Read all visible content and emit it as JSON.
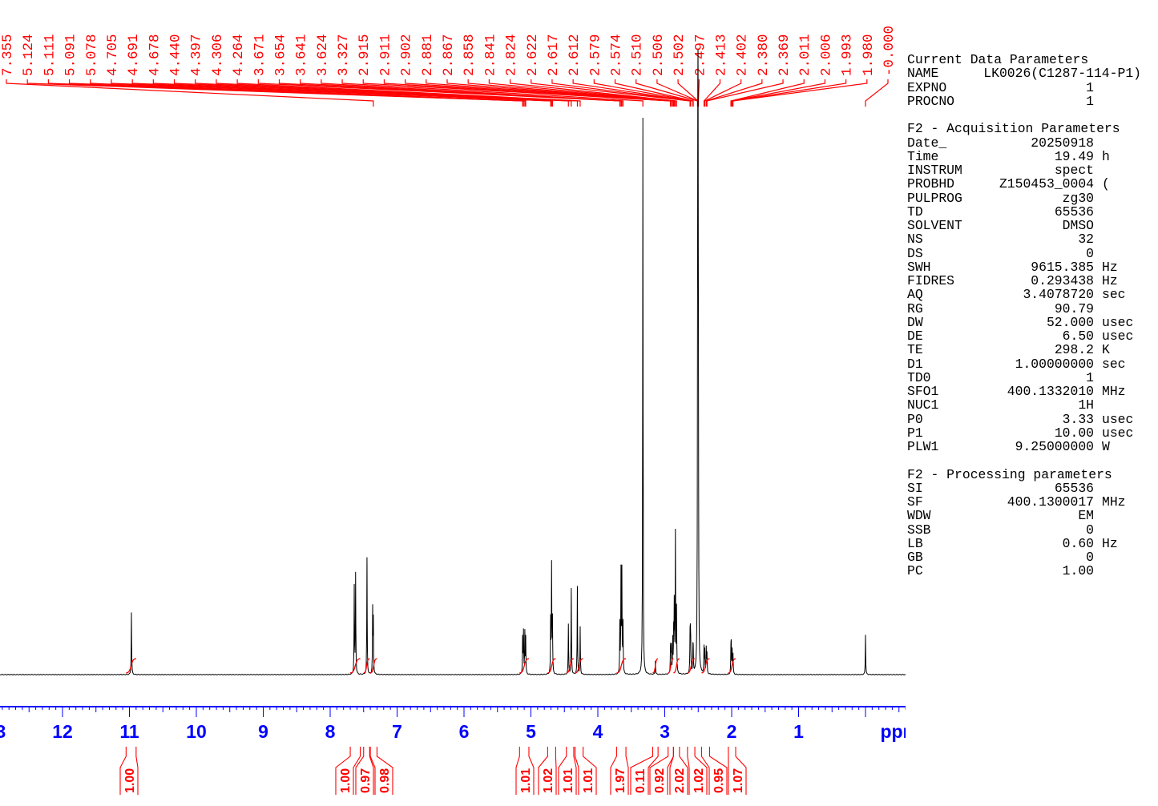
{
  "chart_data": {
    "type": "line",
    "xlabel": "ppm",
    "xlim": [
      12.93,
      -0.8
    ],
    "x_ticks": [
      "12",
      "11",
      "10",
      "9",
      "8",
      "7",
      "6",
      "5",
      "4",
      "3",
      "2",
      "1"
    ],
    "grid": false,
    "colors": {
      "trace": "#000000",
      "annotation": "#ff0000",
      "axis": "#0000ff"
    },
    "peak_labels": [
      "7.355",
      "5.124",
      "5.111",
      "5.091",
      "5.078",
      "4.705",
      "4.691",
      "4.678",
      "4.440",
      "4.397",
      "4.306",
      "4.264",
      "3.671",
      "3.654",
      "3.641",
      "3.624",
      "3.327",
      "2.915",
      "2.911",
      "2.902",
      "2.881",
      "2.867",
      "2.858",
      "2.841",
      "2.824",
      "2.622",
      "2.617",
      "2.612",
      "2.579",
      "2.574",
      "2.510",
      "2.506",
      "2.502",
      "2.497",
      "2.413",
      "2.402",
      "2.380",
      "2.369",
      "2.011",
      "2.006",
      "1.993",
      "1.980",
      "-0.000"
    ],
    "signals": [
      {
        "ppm": 10.97,
        "intensity": 11.2
      },
      {
        "ppm": 7.64,
        "intensity": 15.7
      },
      {
        "ppm": 7.62,
        "intensity": 18.0
      },
      {
        "ppm": 7.45,
        "intensity": 21.0
      },
      {
        "ppm": 7.365,
        "intensity": 11.5
      },
      {
        "ppm": 7.355,
        "intensity": 9.5
      },
      {
        "ppm": 5.124,
        "intensity": 6.5
      },
      {
        "ppm": 5.111,
        "intensity": 7.5
      },
      {
        "ppm": 5.091,
        "intensity": 7.5
      },
      {
        "ppm": 5.078,
        "intensity": 6.5
      },
      {
        "ppm": 4.705,
        "intensity": 9.5
      },
      {
        "ppm": 4.691,
        "intensity": 19.4
      },
      {
        "ppm": 4.678,
        "intensity": 9.5
      },
      {
        "ppm": 4.44,
        "intensity": 9.0
      },
      {
        "ppm": 4.397,
        "intensity": 15.4
      },
      {
        "ppm": 4.306,
        "intensity": 15.8
      },
      {
        "ppm": 4.264,
        "intensity": 8.5
      },
      {
        "ppm": 3.671,
        "intensity": 9.0
      },
      {
        "ppm": 3.654,
        "intensity": 18.0
      },
      {
        "ppm": 3.641,
        "intensity": 18.0
      },
      {
        "ppm": 3.624,
        "intensity": 9.0
      },
      {
        "ppm": 3.327,
        "intensity": 100
      },
      {
        "ppm": 3.14,
        "intensity": 2.5
      },
      {
        "ppm": 2.915,
        "intensity": 3.0
      },
      {
        "ppm": 2.911,
        "intensity": 3.5
      },
      {
        "ppm": 2.902,
        "intensity": 4.5
      },
      {
        "ppm": 2.881,
        "intensity": 6.0
      },
      {
        "ppm": 2.867,
        "intensity": 7.0
      },
      {
        "ppm": 2.858,
        "intensity": 12.0
      },
      {
        "ppm": 2.841,
        "intensity": 25.0
      },
      {
        "ppm": 2.824,
        "intensity": 11.5
      },
      {
        "ppm": 2.622,
        "intensity": 6.0
      },
      {
        "ppm": 2.617,
        "intensity": 5.5
      },
      {
        "ppm": 2.612,
        "intensity": 4.5
      },
      {
        "ppm": 2.579,
        "intensity": 4.0
      },
      {
        "ppm": 2.574,
        "intensity": 3.5
      },
      {
        "ppm": 2.51,
        "intensity": 30.0
      },
      {
        "ppm": 2.506,
        "intensity": 58.0
      },
      {
        "ppm": 2.502,
        "intensity": 69.0
      },
      {
        "ppm": 2.497,
        "intensity": 35.0
      },
      {
        "ppm": 2.413,
        "intensity": 4.6
      },
      {
        "ppm": 2.402,
        "intensity": 4.0
      },
      {
        "ppm": 2.38,
        "intensity": 4.6
      },
      {
        "ppm": 2.369,
        "intensity": 3.5
      },
      {
        "ppm": 2.011,
        "intensity": 4.0
      },
      {
        "ppm": 2.006,
        "intensity": 4.6
      },
      {
        "ppm": 1.993,
        "intensity": 4.2
      },
      {
        "ppm": 1.98,
        "intensity": 3.5
      },
      {
        "ppm": 0.0,
        "intensity": 7.2
      }
    ],
    "integrals": [
      {
        "from": 11.05,
        "to": 10.9,
        "value": "1.00"
      },
      {
        "from": 7.7,
        "to": 7.55,
        "value": "1.00"
      },
      {
        "from": 7.5,
        "to": 7.41,
        "value": "0.97"
      },
      {
        "from": 7.4,
        "to": 7.3,
        "value": "0.98"
      },
      {
        "from": 5.17,
        "to": 5.03,
        "value": "1.01"
      },
      {
        "from": 4.75,
        "to": 4.63,
        "value": "1.02"
      },
      {
        "from": 4.47,
        "to": 4.36,
        "value": "1.01"
      },
      {
        "from": 4.34,
        "to": 4.22,
        "value": "1.01"
      },
      {
        "from": 3.72,
        "to": 3.58,
        "value": "1.97"
      },
      {
        "from": 3.18,
        "to": 3.1,
        "value": "0.11"
      },
      {
        "from": 2.95,
        "to": 2.87,
        "value": "0.92"
      },
      {
        "from": 2.87,
        "to": 2.78,
        "value": "2.02"
      },
      {
        "from": 2.66,
        "to": 2.55,
        "value": "1.02"
      },
      {
        "from": 2.45,
        "to": 2.33,
        "value": "0.95"
      },
      {
        "from": 2.05,
        "to": 1.94,
        "value": "1.07"
      }
    ]
  },
  "parameters": [
    {
      "k": "Current Data Parameters"
    },
    {
      "k": "NAME",
      "v": "LK0026(C1287-114-P1)",
      "wide": true
    },
    {
      "k": "EXPNO",
      "v": "1"
    },
    {
      "k": "PROCNO",
      "v": "1"
    },
    {
      "k": ""
    },
    {
      "k": "F2 - Acquisition Parameters"
    },
    {
      "k": "Date_",
      "v": "20250918"
    },
    {
      "k": "Time",
      "v": "19.49",
      "u": "h"
    },
    {
      "k": "INSTRUM",
      "v": "spect"
    },
    {
      "k": "PROBHD",
      "v": "Z150453_0004",
      "u": "("
    },
    {
      "k": "PULPROG",
      "v": "zg30"
    },
    {
      "k": "TD",
      "v": "65536"
    },
    {
      "k": "SOLVENT",
      "v": "DMSO"
    },
    {
      "k": "NS",
      "v": "32"
    },
    {
      "k": "DS",
      "v": "0"
    },
    {
      "k": "SWH",
      "v": "9615.385",
      "u": "Hz"
    },
    {
      "k": "FIDRES",
      "v": "0.293438",
      "u": "Hz"
    },
    {
      "k": "AQ",
      "v": "3.4078720",
      "u": "sec"
    },
    {
      "k": "RG",
      "v": "90.79"
    },
    {
      "k": "DW",
      "v": "52.000",
      "u": "usec"
    },
    {
      "k": "DE",
      "v": "6.50",
      "u": "usec"
    },
    {
      "k": "TE",
      "v": "298.2",
      "u": "K"
    },
    {
      "k": "D1",
      "v": "1.00000000",
      "u": "sec"
    },
    {
      "k": "TD0",
      "v": "1"
    },
    {
      "k": "SFO1",
      "v": "400.1332010",
      "u": "MHz"
    },
    {
      "k": "NUC1",
      "v": "1H"
    },
    {
      "k": "P0",
      "v": "3.33",
      "u": "usec"
    },
    {
      "k": "P1",
      "v": "10.00",
      "u": "usec"
    },
    {
      "k": "PLW1",
      "v": "9.25000000",
      "u": "W"
    },
    {
      "k": ""
    },
    {
      "k": "F2 - Processing parameters"
    },
    {
      "k": "SI",
      "v": "65536"
    },
    {
      "k": "SF",
      "v": "400.1300017",
      "u": "MHz"
    },
    {
      "k": "WDW",
      "v": "EM"
    },
    {
      "k": "SSB",
      "v": "0"
    },
    {
      "k": "LB",
      "v": "0.60",
      "u": "Hz"
    },
    {
      "k": "GB",
      "v": "0"
    },
    {
      "k": "PC",
      "v": "1.00"
    }
  ]
}
